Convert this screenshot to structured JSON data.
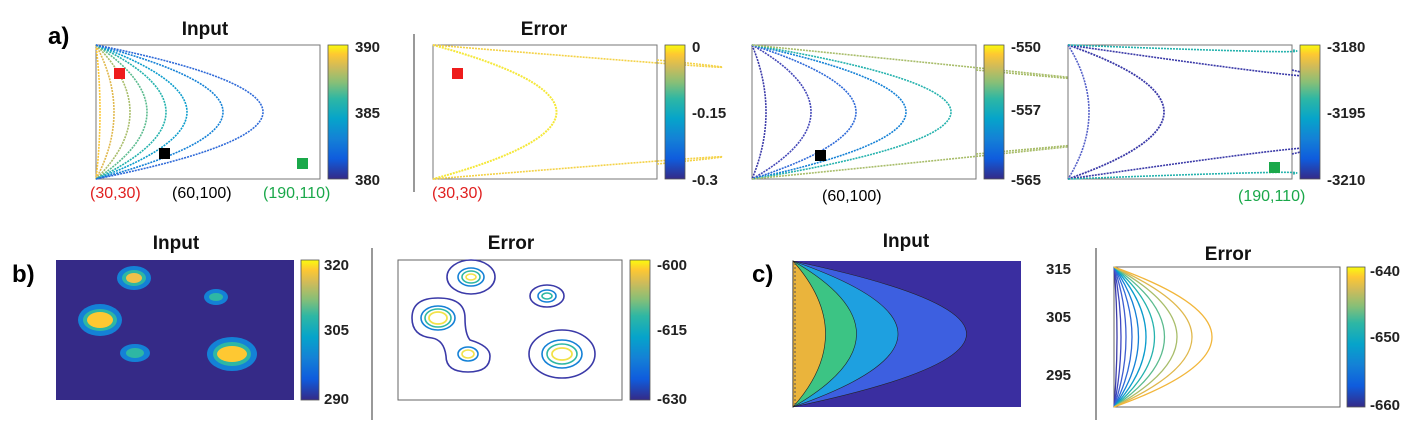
{
  "panel_labels": {
    "a": "a)",
    "b": "b)",
    "c": "c)"
  },
  "titles": {
    "input": "Input",
    "error": "Error"
  },
  "colors": {
    "red_marker": "#ee1c1c",
    "black_marker": "#000000",
    "green_marker": "#1aa84a",
    "red_text": "#e02020",
    "black_text": "#000000",
    "green_text": "#1aa84a",
    "parula": [
      "#352a87",
      "#0f5cdd",
      "#1481d6",
      "#06a4ca",
      "#2eb7a4",
      "#87bf77",
      "#d1bb59",
      "#fec832",
      "#f9fb0e"
    ]
  },
  "coordinates": {
    "p1": "(30,30)",
    "p2": "(60,100)",
    "p3": "(190,110)"
  },
  "chart_data": [
    {
      "type": "heatmap",
      "panel": "a",
      "title": "Input",
      "pattern": "nested-arcs-from-left-edge",
      "arcs": 8,
      "colorbar": {
        "min": 380,
        "max": 390,
        "ticks": [
          "390",
          "385",
          "380"
        ]
      },
      "markers": [
        "red",
        "black",
        "green"
      ],
      "coordinate_labels": [
        "(30,30)",
        "(60,100)",
        "(190,110)"
      ]
    },
    {
      "type": "heatmap",
      "panel": "a",
      "title": "Error",
      "pattern": "nested-arcs-from-left-edge",
      "arcs": 3,
      "colorbar": {
        "min": -0.3,
        "max": 0,
        "ticks": [
          "0",
          "-0.15",
          "-0.3"
        ]
      },
      "markers": [
        "red"
      ],
      "coordinate_labels": [
        "(30,30)"
      ]
    },
    {
      "type": "heatmap",
      "panel": "a",
      "title": "",
      "pattern": "nested-arcs-from-left-edge",
      "arcs": 6,
      "colorbar": {
        "min": -565,
        "max": -550,
        "ticks": [
          "-550",
          "-557",
          "-565"
        ]
      },
      "markers": [
        "black"
      ],
      "coordinate_labels": [
        "(60,100)"
      ]
    },
    {
      "type": "heatmap",
      "panel": "a",
      "title": "",
      "pattern": "nested-arcs-from-left-edge",
      "arcs": 5,
      "colorbar": {
        "min": -3210,
        "max": -3180,
        "ticks": [
          "-3180",
          "-3195",
          "-3210"
        ]
      },
      "markers": [
        "green"
      ],
      "coordinate_labels": [
        "(190,110)"
      ]
    },
    {
      "type": "heatmap",
      "panel": "b",
      "title": "Input",
      "pattern": "gaussian-blobs",
      "blobs": 6,
      "colorbar": {
        "min": 290,
        "max": 320,
        "ticks": [
          "320",
          "305",
          "290"
        ]
      }
    },
    {
      "type": "heatmap",
      "panel": "b",
      "title": "Error",
      "pattern": "contour-rings",
      "blobs": 6,
      "colorbar": {
        "min": -630,
        "max": -600,
        "ticks": [
          "-600",
          "-615",
          "-630"
        ]
      }
    },
    {
      "type": "heatmap",
      "panel": "c",
      "title": "Input",
      "pattern": "filled-nested-arcs",
      "arcs": 4,
      "colorbar": {
        "min": 290,
        "max": 315,
        "ticks": [
          "315",
          "305",
          "295"
        ]
      }
    },
    {
      "type": "heatmap",
      "panel": "c",
      "title": "Error",
      "pattern": "nested-arcs-from-left-edge",
      "arcs": 11,
      "colorbar": {
        "min": -660,
        "max": -640,
        "ticks": [
          "-640",
          "-650",
          "-660"
        ]
      }
    }
  ]
}
